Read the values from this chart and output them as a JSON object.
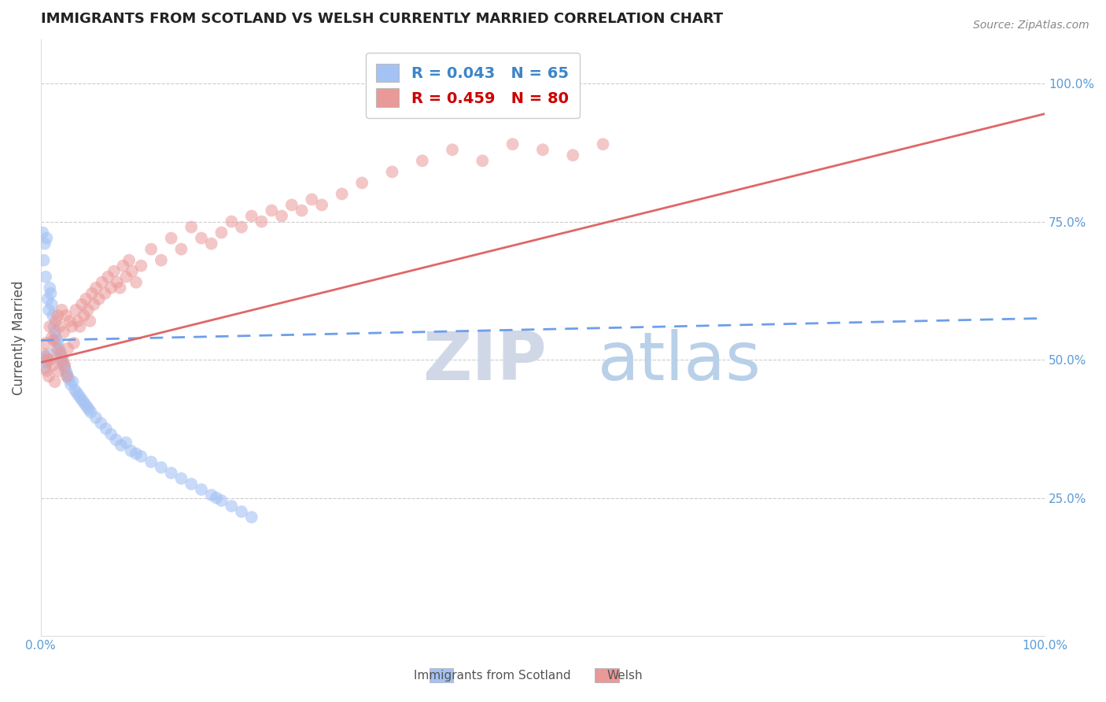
{
  "title": "IMMIGRANTS FROM SCOTLAND VS WELSH CURRENTLY MARRIED CORRELATION CHART",
  "source_text": "Source: ZipAtlas.com",
  "ylabel": "Currently Married",
  "legend_label_blue": "Immigrants from Scotland",
  "legend_label_pink": "Welsh",
  "r_blue": 0.043,
  "n_blue": 65,
  "r_pink": 0.459,
  "n_pink": 80,
  "color_blue": "#a4c2f4",
  "color_pink": "#ea9999",
  "color_blue_line": "#6d9eeb",
  "color_pink_line": "#e06666",
  "color_blue_text": "#3d85c8",
  "color_pink_text": "#cc0000",
  "watermark_zip": "ZIP",
  "watermark_atlas": "atlas",
  "watermark_color_zip": "#d0d8e8",
  "watermark_color_atlas": "#b8d0e8",
  "xmin": 0.0,
  "xmax": 1.0,
  "ymin": 0.0,
  "ymax": 1.08,
  "right_yticks": [
    0.25,
    0.5,
    0.75,
    1.0
  ],
  "right_yticklabels": [
    "25.0%",
    "50.0%",
    "75.0%",
    "100.0%"
  ],
  "figsize": [
    14.06,
    8.92
  ],
  "dpi": 100,
  "blue_x": [
    0.002,
    0.003,
    0.004,
    0.005,
    0.006,
    0.007,
    0.008,
    0.009,
    0.01,
    0.011,
    0.012,
    0.013,
    0.014,
    0.015,
    0.016,
    0.017,
    0.018,
    0.019,
    0.02,
    0.021,
    0.022,
    0.023,
    0.024,
    0.025,
    0.026,
    0.027,
    0.028,
    0.03,
    0.032,
    0.034,
    0.036,
    0.038,
    0.04,
    0.042,
    0.044,
    0.046,
    0.048,
    0.05,
    0.055,
    0.06,
    0.065,
    0.07,
    0.075,
    0.08,
    0.085,
    0.09,
    0.095,
    0.1,
    0.11,
    0.12,
    0.13,
    0.14,
    0.15,
    0.16,
    0.17,
    0.175,
    0.18,
    0.19,
    0.2,
    0.21,
    0.003,
    0.004,
    0.005,
    0.006,
    0.008
  ],
  "blue_y": [
    0.73,
    0.68,
    0.71,
    0.65,
    0.72,
    0.61,
    0.59,
    0.63,
    0.62,
    0.6,
    0.58,
    0.56,
    0.55,
    0.54,
    0.535,
    0.53,
    0.52,
    0.515,
    0.5,
    0.505,
    0.495,
    0.49,
    0.485,
    0.48,
    0.475,
    0.47,
    0.465,
    0.455,
    0.46,
    0.445,
    0.44,
    0.435,
    0.43,
    0.425,
    0.42,
    0.415,
    0.41,
    0.405,
    0.395,
    0.385,
    0.375,
    0.365,
    0.355,
    0.345,
    0.35,
    0.335,
    0.33,
    0.325,
    0.315,
    0.305,
    0.295,
    0.285,
    0.275,
    0.265,
    0.255,
    0.25,
    0.245,
    0.235,
    0.225,
    0.215,
    0.5,
    0.485,
    0.505,
    0.495,
    0.51
  ],
  "pink_x": [
    0.003,
    0.005,
    0.007,
    0.009,
    0.011,
    0.013,
    0.015,
    0.017,
    0.019,
    0.021,
    0.023,
    0.025,
    0.027,
    0.029,
    0.031,
    0.033,
    0.035,
    0.037,
    0.039,
    0.041,
    0.043,
    0.045,
    0.047,
    0.049,
    0.051,
    0.053,
    0.055,
    0.058,
    0.061,
    0.064,
    0.067,
    0.07,
    0.073,
    0.076,
    0.079,
    0.082,
    0.085,
    0.088,
    0.091,
    0.095,
    0.1,
    0.11,
    0.12,
    0.13,
    0.14,
    0.15,
    0.16,
    0.17,
    0.18,
    0.19,
    0.2,
    0.21,
    0.22,
    0.23,
    0.24,
    0.25,
    0.26,
    0.27,
    0.28,
    0.3,
    0.32,
    0.35,
    0.38,
    0.41,
    0.44,
    0.47,
    0.5,
    0.53,
    0.56,
    0.006,
    0.008,
    0.01,
    0.012,
    0.014,
    0.016,
    0.018,
    0.02,
    0.022,
    0.024,
    0.026
  ],
  "pink_y": [
    0.51,
    0.53,
    0.5,
    0.56,
    0.54,
    0.535,
    0.57,
    0.58,
    0.56,
    0.59,
    0.55,
    0.58,
    0.52,
    0.57,
    0.56,
    0.53,
    0.59,
    0.57,
    0.56,
    0.6,
    0.58,
    0.61,
    0.59,
    0.57,
    0.62,
    0.6,
    0.63,
    0.61,
    0.64,
    0.62,
    0.65,
    0.63,
    0.66,
    0.64,
    0.63,
    0.67,
    0.65,
    0.68,
    0.66,
    0.64,
    0.67,
    0.7,
    0.68,
    0.72,
    0.7,
    0.74,
    0.72,
    0.71,
    0.73,
    0.75,
    0.74,
    0.76,
    0.75,
    0.77,
    0.76,
    0.78,
    0.77,
    0.79,
    0.78,
    0.8,
    0.82,
    0.84,
    0.86,
    0.88,
    0.86,
    0.89,
    0.88,
    0.87,
    0.89,
    0.48,
    0.47,
    0.5,
    0.49,
    0.46,
    0.52,
    0.48,
    0.51,
    0.5,
    0.49,
    0.47
  ],
  "blue_line_x0": 0.0,
  "blue_line_x1": 1.0,
  "blue_line_y0": 0.535,
  "blue_line_y1": 0.575,
  "pink_line_x0": 0.0,
  "pink_line_x1": 1.0,
  "pink_line_y0": 0.495,
  "pink_line_y1": 0.945
}
